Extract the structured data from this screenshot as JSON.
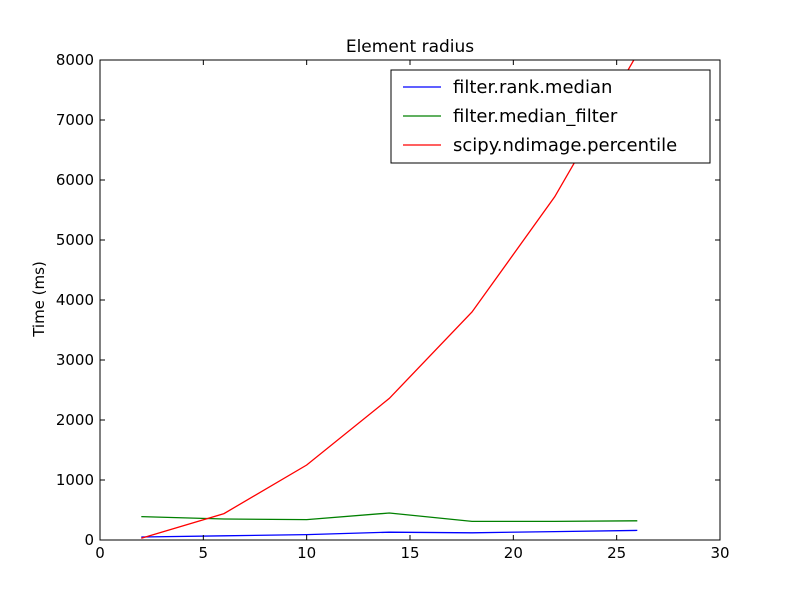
{
  "chart_data": {
    "type": "line",
    "title": "Element radius",
    "xlabel": "",
    "ylabel": "Time (ms)",
    "xlim": [
      0,
      30
    ],
    "ylim": [
      0,
      8000
    ],
    "xticks": [
      0,
      5,
      10,
      15,
      20,
      25,
      30
    ],
    "yticks": [
      0,
      1000,
      2000,
      3000,
      4000,
      5000,
      6000,
      7000,
      8000
    ],
    "grid": false,
    "legend_position": "top-right",
    "x": [
      2,
      6,
      10,
      14,
      18,
      22,
      26
    ],
    "series": [
      {
        "name": "filter.rank.median",
        "color": "#0000ff",
        "values": [
          50,
          70,
          90,
          130,
          120,
          140,
          160
        ]
      },
      {
        "name": "filter.median_filter",
        "color": "#008000",
        "values": [
          390,
          350,
          340,
          450,
          310,
          310,
          320
        ]
      },
      {
        "name": "scipy.ndimage.percentile",
        "color": "#ff0000",
        "values": [
          30,
          440,
          1250,
          2360,
          3800,
          5720,
          8100
        ]
      }
    ]
  }
}
